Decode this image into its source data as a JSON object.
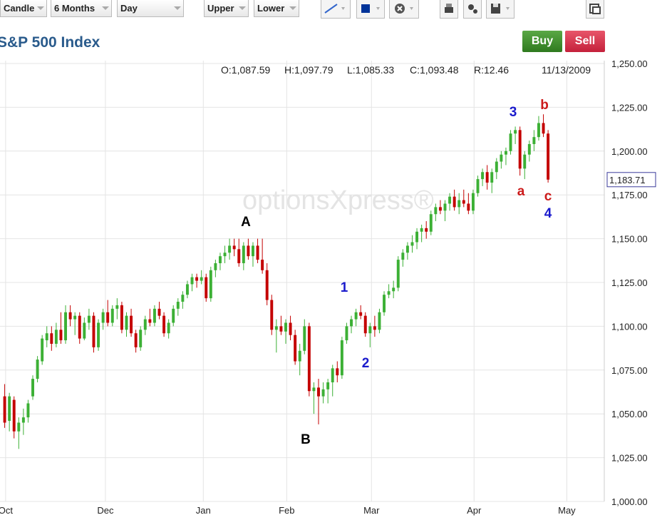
{
  "toolbar": {
    "chart_type": "Candle",
    "range": "6 Months",
    "interval": "Day",
    "upper": "Upper",
    "lower": "Lower"
  },
  "buttons": {
    "buy": "Buy",
    "sell": "Sell"
  },
  "chart_data": {
    "type": "candlestick",
    "title": "S&P 500 Index",
    "watermark": "optionsXpress®",
    "header": {
      "open": "O:1,087.59",
      "high": "H:1,097.79",
      "low": "L:1,085.33",
      "close": "C:1,093.48",
      "range": "R:12.46",
      "date": "11/13/2009"
    },
    "up_color": "#3cb035",
    "down_color": "#c40000",
    "grid": true,
    "annotations": [
      {
        "text": "A",
        "color": "#000000"
      },
      {
        "text": "B",
        "color": "#000000"
      },
      {
        "text": "1",
        "color": "#1a1acc"
      },
      {
        "text": "2",
        "color": "#1a1acc"
      },
      {
        "text": "3",
        "color": "#1a1acc"
      },
      {
        "text": "4",
        "color": "#1a1acc"
      },
      {
        "text": "a",
        "color": "#cc1a1a"
      },
      {
        "text": "b",
        "color": "#cc1a1a"
      },
      {
        "text": "c",
        "color": "#cc1a1a"
      }
    ],
    "last_price": {
      "value": 1183.71,
      "label": "1,183.71"
    },
    "xlim": [
      0,
      129
    ],
    "xticks": [
      {
        "value": 1.2,
        "label": "Oct"
      },
      {
        "value": 22.5,
        "label": "Dec"
      },
      {
        "value": 43.4,
        "label": "Jan"
      },
      {
        "value": 61.2,
        "label": "Feb"
      },
      {
        "value": 79.3,
        "label": "Mar"
      },
      {
        "value": 101.2,
        "label": "Apr"
      },
      {
        "value": 121,
        "label": "May"
      }
    ],
    "ylim": [
      1000,
      1250
    ],
    "yticks": [
      {
        "value": 1000,
        "label": "1,000.00"
      },
      {
        "value": 1025,
        "label": "1,025.00"
      },
      {
        "value": 1050,
        "label": "1,050.00"
      },
      {
        "value": 1075,
        "label": "1,075.00"
      },
      {
        "value": 1100,
        "label": "1,100.00"
      },
      {
        "value": 1125,
        "label": "1,125.00"
      },
      {
        "value": 1150,
        "label": "1,150.00"
      },
      {
        "value": 1175,
        "label": "1,175.00"
      },
      {
        "value": 1200,
        "label": "1,200.00"
      },
      {
        "value": 1225,
        "label": "1,225.00"
      },
      {
        "value": 1250,
        "label": "1,250.00"
      }
    ],
    "x": [
      1,
      2,
      3,
      4,
      5,
      6,
      7,
      8,
      9,
      10,
      11,
      12,
      13,
      14,
      15,
      16,
      17,
      18,
      19,
      20,
      21,
      22,
      23,
      24,
      25,
      26,
      27,
      28,
      29,
      30,
      31,
      32,
      33,
      34,
      35,
      36,
      37,
      38,
      39,
      40,
      41,
      42,
      43,
      44,
      45,
      46,
      47,
      48,
      49,
      50,
      51,
      52,
      53,
      54,
      55,
      56,
      57,
      58,
      59,
      60,
      61,
      62,
      63,
      64,
      65,
      66,
      67,
      68,
      69,
      70,
      71,
      72,
      73,
      74,
      75,
      76,
      77,
      78,
      79,
      80,
      81,
      82,
      83,
      84,
      85,
      86,
      87,
      88,
      89,
      90,
      91,
      92,
      93,
      94,
      95,
      96,
      97,
      98,
      99,
      100,
      101,
      102,
      103,
      104,
      105,
      106,
      107,
      108,
      109,
      110,
      111,
      112,
      113,
      114,
      115,
      116,
      117
    ],
    "candles": [
      [
        1060,
        1067,
        1042,
        1045
      ],
      [
        1046,
        1062,
        1040,
        1060
      ],
      [
        1058,
        1060,
        1036,
        1040
      ],
      [
        1040,
        1048,
        1030,
        1045
      ],
      [
        1045,
        1053,
        1038,
        1048
      ],
      [
        1048,
        1058,
        1045,
        1056
      ],
      [
        1060,
        1072,
        1058,
        1070
      ],
      [
        1070,
        1083,
        1068,
        1081
      ],
      [
        1080,
        1095,
        1078,
        1093
      ],
      [
        1092,
        1100,
        1088,
        1096
      ],
      [
        1096,
        1100,
        1086,
        1090
      ],
      [
        1090,
        1102,
        1088,
        1098
      ],
      [
        1098,
        1108,
        1090,
        1092
      ],
      [
        1092,
        1112,
        1090,
        1108
      ],
      [
        1108,
        1112,
        1100,
        1104
      ],
      [
        1104,
        1108,
        1095,
        1106
      ],
      [
        1106,
        1108,
        1090,
        1093
      ],
      [
        1093,
        1105,
        1092,
        1102
      ],
      [
        1102,
        1110,
        1098,
        1106
      ],
      [
        1106,
        1108,
        1085,
        1088
      ],
      [
        1088,
        1104,
        1086,
        1102
      ],
      [
        1102,
        1110,
        1098,
        1108
      ],
      [
        1108,
        1115,
        1100,
        1102
      ],
      [
        1102,
        1112,
        1100,
        1110
      ],
      [
        1110,
        1116,
        1104,
        1112
      ],
      [
        1112,
        1114,
        1096,
        1098
      ],
      [
        1098,
        1108,
        1094,
        1106
      ],
      [
        1106,
        1110,
        1094,
        1096
      ],
      [
        1096,
        1098,
        1085,
        1088
      ],
      [
        1088,
        1100,
        1086,
        1098
      ],
      [
        1098,
        1106,
        1095,
        1104
      ],
      [
        1104,
        1110,
        1100,
        1102
      ],
      [
        1102,
        1112,
        1100,
        1110
      ],
      [
        1110,
        1114,
        1104,
        1106
      ],
      [
        1106,
        1108,
        1094,
        1096
      ],
      [
        1096,
        1104,
        1093,
        1102
      ],
      [
        1102,
        1112,
        1100,
        1110
      ],
      [
        1110,
        1116,
        1106,
        1114
      ],
      [
        1114,
        1120,
        1110,
        1118
      ],
      [
        1118,
        1126,
        1116,
        1124
      ],
      [
        1124,
        1130,
        1120,
        1128
      ],
      [
        1128,
        1130,
        1122,
        1126
      ],
      [
        1126,
        1132,
        1124,
        1128
      ],
      [
        1128,
        1130,
        1114,
        1116
      ],
      [
        1116,
        1134,
        1114,
        1132
      ],
      [
        1132,
        1138,
        1128,
        1136
      ],
      [
        1136,
        1142,
        1132,
        1140
      ],
      [
        1140,
        1146,
        1136,
        1142
      ],
      [
        1142,
        1150,
        1138,
        1146
      ],
      [
        1146,
        1150,
        1140,
        1144
      ],
      [
        1144,
        1150,
        1134,
        1136
      ],
      [
        1136,
        1148,
        1132,
        1146
      ],
      [
        1146,
        1150,
        1138,
        1140
      ],
      [
        1140,
        1148,
        1134,
        1146
      ],
      [
        1146,
        1150,
        1136,
        1138
      ],
      [
        1138,
        1150,
        1130,
        1132
      ],
      [
        1132,
        1136,
        1112,
        1115
      ],
      [
        1115,
        1118,
        1095,
        1098
      ],
      [
        1098,
        1104,
        1085,
        1100
      ],
      [
        1100,
        1106,
        1095,
        1097
      ],
      [
        1097,
        1104,
        1090,
        1102
      ],
      [
        1102,
        1106,
        1092,
        1095
      ],
      [
        1095,
        1098,
        1078,
        1080
      ],
      [
        1080,
        1090,
        1072,
        1086
      ],
      [
        1086,
        1104,
        1084,
        1100
      ],
      [
        1100,
        1102,
        1060,
        1063
      ],
      [
        1063,
        1068,
        1050,
        1065
      ],
      [
        1065,
        1070,
        1044,
        1060
      ],
      [
        1060,
        1068,
        1056,
        1064
      ],
      [
        1064,
        1070,
        1056,
        1068
      ],
      [
        1068,
        1078,
        1060,
        1076
      ],
      [
        1076,
        1080,
        1068,
        1072
      ],
      [
        1072,
        1094,
        1070,
        1092
      ],
      [
        1092,
        1102,
        1090,
        1100
      ],
      [
        1100,
        1106,
        1096,
        1104
      ],
      [
        1104,
        1110,
        1100,
        1108
      ],
      [
        1108,
        1112,
        1104,
        1106
      ],
      [
        1106,
        1108,
        1094,
        1096
      ],
      [
        1096,
        1102,
        1088,
        1100
      ],
      [
        1100,
        1106,
        1094,
        1098
      ],
      [
        1098,
        1110,
        1096,
        1108
      ],
      [
        1108,
        1120,
        1106,
        1118
      ],
      [
        1118,
        1124,
        1116,
        1120
      ],
      [
        1120,
        1126,
        1116,
        1122
      ],
      [
        1122,
        1140,
        1120,
        1138
      ],
      [
        1138,
        1144,
        1134,
        1142
      ],
      [
        1142,
        1148,
        1138,
        1146
      ],
      [
        1146,
        1152,
        1142,
        1148
      ],
      [
        1148,
        1156,
        1144,
        1154
      ],
      [
        1154,
        1158,
        1148,
        1156
      ],
      [
        1156,
        1160,
        1150,
        1154
      ],
      [
        1154,
        1166,
        1152,
        1164
      ],
      [
        1164,
        1170,
        1160,
        1168
      ],
      [
        1168,
        1172,
        1164,
        1166
      ],
      [
        1166,
        1172,
        1160,
        1170
      ],
      [
        1170,
        1176,
        1166,
        1174
      ],
      [
        1174,
        1178,
        1166,
        1168
      ],
      [
        1168,
        1176,
        1164,
        1172
      ],
      [
        1172,
        1178,
        1168,
        1170
      ],
      [
        1170,
        1176,
        1164,
        1166
      ],
      [
        1166,
        1178,
        1164,
        1176
      ],
      [
        1176,
        1186,
        1174,
        1184
      ],
      [
        1184,
        1190,
        1180,
        1188
      ],
      [
        1188,
        1192,
        1178,
        1182
      ],
      [
        1182,
        1190,
        1176,
        1188
      ],
      [
        1188,
        1196,
        1184,
        1194
      ],
      [
        1194,
        1200,
        1190,
        1198
      ],
      [
        1198,
        1202,
        1192,
        1200
      ],
      [
        1200,
        1212,
        1198,
        1210
      ],
      [
        1210,
        1214,
        1204,
        1212
      ],
      [
        1212,
        1214,
        1186,
        1190
      ],
      [
        1190,
        1200,
        1184,
        1198
      ],
      [
        1198,
        1206,
        1194,
        1204
      ],
      [
        1204,
        1212,
        1200,
        1208
      ],
      [
        1208,
        1220,
        1206,
        1216
      ],
      [
        1216,
        1221,
        1208,
        1210
      ],
      [
        1210,
        1212,
        1182,
        1183.71
      ]
    ]
  }
}
